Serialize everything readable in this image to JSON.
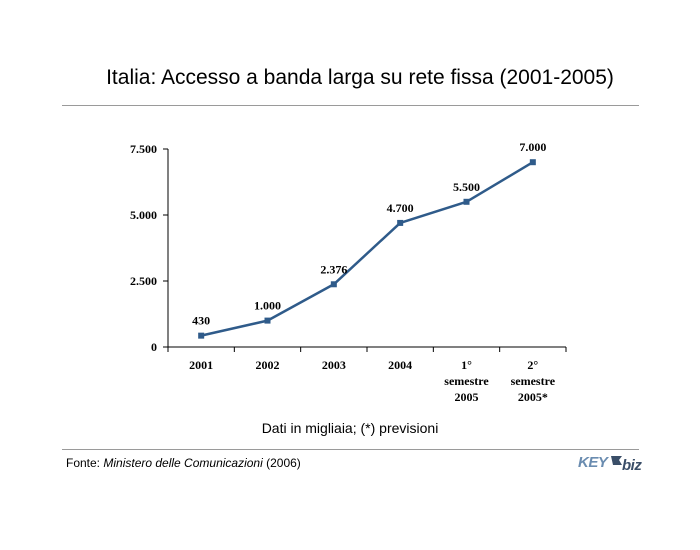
{
  "title": "Italia: Accesso a banda larga su rete fissa (2001-2005)",
  "note": "Dati in migliaia; (*) previsioni",
  "source": {
    "prefix": "Fonte: ",
    "name": "Ministero delle Comunicazioni",
    "suffix": " (2006)"
  },
  "logo": {
    "part1": "KEY",
    "part2": "biz"
  },
  "colors": {
    "line": "#2f5b8a",
    "marker": "#2f5b8a",
    "rule": "#9a9a9a",
    "logo_part1": "#6a8cb0",
    "logo_part2": "#3a4e68"
  },
  "chart_data": {
    "type": "line",
    "categories": [
      [
        "2001"
      ],
      [
        "2002"
      ],
      [
        "2003"
      ],
      [
        "2004"
      ],
      [
        "1°",
        "semestre",
        "2005"
      ],
      [
        "2°",
        "semestre",
        "2005*"
      ]
    ],
    "values": [
      430,
      1000,
      2376,
      4700,
      5500,
      7000
    ],
    "value_labels": [
      "430",
      "1.000",
      "2.376",
      "4.700",
      "5.500",
      "7.000"
    ],
    "ylim": [
      0,
      7500
    ],
    "yticks": [
      0,
      2500,
      5000,
      7500
    ],
    "ytick_labels": [
      "0",
      "2.500",
      "5.000",
      "7.500"
    ],
    "grid": false,
    "legend": "none"
  }
}
